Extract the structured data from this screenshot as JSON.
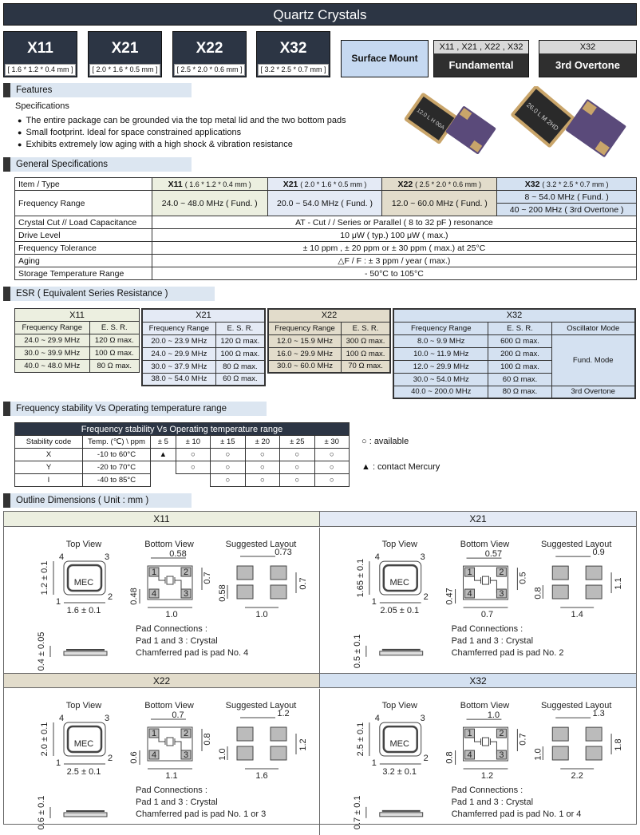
{
  "header": {
    "title": "Quartz  Crystals"
  },
  "models": [
    {
      "name": "X11",
      "size": "[ 1.6 * 1.2 * 0.4 mm ]"
    },
    {
      "name": "X21",
      "size": "[ 2.0 * 1.6 * 0.5 mm ]"
    },
    {
      "name": "X22",
      "size": "[ 2.5 * 2.0 * 0.6 mm ]"
    },
    {
      "name": "X32",
      "size": "[ 3.2 * 2.5 * 0.7 mm ]"
    }
  ],
  "badges": {
    "surface_mount": "Surface Mount",
    "fundamental": {
      "models": "X11 , X21 , X22 , X32",
      "label": "Fundamental"
    },
    "overtone": {
      "models": "X32",
      "label": "3rd Overtone"
    }
  },
  "features": {
    "heading": "Features",
    "subheading": "Specifications",
    "bullets": [
      "The entire package can be grounded via the top metal lid and the two bottom pads",
      "Small footprint. Ideal for space constrained applications",
      "Exhibits extremely low aging with a high shock & vibration resistance"
    ],
    "photo_markings": [
      "12.0 L H 00A",
      "26.0 L M 2HD"
    ]
  },
  "general": {
    "heading": "General Specifications",
    "header": {
      "item": "Item / Type",
      "cols": [
        {
          "model": "X11",
          "size": "( 1.6 * 1.2 * 0.4 mm )"
        },
        {
          "model": "X21",
          "size": "( 2.0 * 1.6 * 0.5 mm )"
        },
        {
          "model": "X22",
          "size": "( 2.5 * 2.0 * 0.6 mm )"
        },
        {
          "model": "X32",
          "size": "( 3.2 * 2.5 * 0.7 mm )"
        }
      ]
    },
    "freq": {
      "label": "Frequency Range",
      "values": [
        "24.0 ~ 48.0 MHz ( Fund. )",
        "20.0 ~ 54.0 MHz ( Fund. )",
        "12.0 ~ 60.0 MHz  ( Fund. )"
      ],
      "x32": [
        "8 ~ 54.0 MHz ( Fund. )",
        "40 ~ 200 MHz ( 3rd Overtone )"
      ]
    },
    "rows": [
      {
        "label": "Crystal Cut // Load Capacitance",
        "value": "AT - Cut  / /  Series or Parallel ( 8 to 32 pF ) resonance"
      },
      {
        "label": "Drive Level",
        "value": "10 μW  ( typ.)     100 μW ( max.)"
      },
      {
        "label": "Frequency Tolerance",
        "value": "± 10 ppm , ± 20 ppm or ± 30 ppm ( max.) at  25°C"
      },
      {
        "label": "Aging",
        "value": "△F / F : ± 3 ppm  /  year ( max.)"
      },
      {
        "label": "Storage Temperature Range",
        "value": "- 50°C to 105°C"
      }
    ]
  },
  "esr": {
    "heading": "ESR ( Equivalent Series Resistance )",
    "col_freq": "Frequency Range",
    "col_esr": "E. S. R.",
    "col_mode": "Oscillator Mode",
    "groups": [
      {
        "model": "X11",
        "rows": [
          [
            "24.0 ~ 29.9 MHz",
            "120 Ω max."
          ],
          [
            "30.0 ~ 39.9 MHz",
            "100 Ω max."
          ],
          [
            "40.0 ~ 48.0 MHz",
            "80 Ω max."
          ]
        ]
      },
      {
        "model": "X21",
        "rows": [
          [
            "20.0 ~ 23.9 MHz",
            "120 Ω max."
          ],
          [
            "24.0 ~ 29.9 MHz",
            "100 Ω max."
          ],
          [
            "30.0 ~ 37.9 MHz",
            "80 Ω max."
          ],
          [
            "38.0 ~ 54.0 MHz",
            "60 Ω max."
          ]
        ]
      },
      {
        "model": "X22",
        "rows": [
          [
            "12.0 ~ 15.9 MHz",
            "300 Ω max."
          ],
          [
            "16.0 ~ 29.9 MHz",
            "100 Ω max."
          ],
          [
            "30.0 ~ 60.0 MHz",
            "70 Ω max."
          ]
        ]
      },
      {
        "model": "X32",
        "rows": [
          [
            "8.0 ~ 9.9 MHz",
            "600 Ω max."
          ],
          [
            "10.0 ~ 11.9 MHz",
            "200 Ω max."
          ],
          [
            "12.0 ~ 29.9 MHz",
            "100 Ω max."
          ],
          [
            "30.0 ~ 54.0 MHz",
            "60 Ω max."
          ],
          [
            "40.0 ~ 200.0 MHz",
            "80 Ω max."
          ]
        ],
        "modes": [
          "Fund. Mode",
          "3rd Overtone"
        ]
      }
    ]
  },
  "stability": {
    "heading": "Frequency stability Vs Operating temperature range",
    "title": "Frequency stability Vs Operating temperature range",
    "col_code": "Stability code",
    "col_temp": "Temp. (℃) \\ ppm",
    "ppm": [
      "± 5",
      "± 10",
      "± 15",
      "± 20",
      "± 25",
      "± 30"
    ],
    "rows": [
      {
        "code": "X",
        "temp": "-10   to   60°C",
        "marks": [
          "triangle",
          "circle",
          "circle",
          "circle",
          "circle",
          "circle"
        ]
      },
      {
        "code": "Y",
        "temp": "-20   to   70°C",
        "marks": [
          "",
          "circle",
          "circle",
          "circle",
          "circle",
          "circle"
        ]
      },
      {
        "code": "I",
        "temp": "-40   to   85°C",
        "marks": [
          "",
          "",
          "circle",
          "circle",
          "circle",
          "circle"
        ]
      }
    ],
    "legend": {
      "available": "○ : available",
      "contact": "▲ : contact  Mercury"
    }
  },
  "outline": {
    "heading": "Outline Dimensions ( Unit : mm )",
    "top_view": "Top View",
    "bottom_view": "Bottom View",
    "layout": "Suggested Layout",
    "logo": "MEC",
    "pins": [
      "1",
      "2",
      "3",
      "4"
    ],
    "panels": [
      {
        "model": "X11",
        "color": "#ecefe0",
        "h": "1.2 ± 0.1",
        "w": "1.6 ± 0.1",
        "t": "0.4 ± 0.05",
        "b": [
          "0.58",
          "0.7",
          "0.48",
          "1.0"
        ],
        "l": [
          "0.73",
          "0.58",
          "1.0",
          "0.7"
        ],
        "pads": [
          "Pad Connections :",
          "Pad 1 and 3 : Crystal",
          "Chamferred pad is pad No. 4"
        ]
      },
      {
        "model": "X21",
        "color": "#e4eaf5",
        "h": "1.65 ± 0.1",
        "w": "2.05 ± 0.1",
        "t": "0.5 ± 0.1",
        "b": [
          "0.57",
          "0.5",
          "0.47",
          "0.7"
        ],
        "l": [
          "0.9",
          "0.8",
          "1.4",
          "1.1"
        ],
        "pads": [
          "Pad Connections :",
          "Pad 1 and 3 : Crystal",
          "Chamferred pad is pad No. 2"
        ]
      },
      {
        "model": "X22",
        "color": "#e2dccb",
        "h": "2.0 ± 0.1",
        "w": "2.5 ± 0.1",
        "t": "0.6 ± 0.1",
        "b": [
          "0.7",
          "0.8",
          "0.6",
          "1.1"
        ],
        "l": [
          "1.2",
          "1.0",
          "1.6",
          "1.2"
        ],
        "pads": [
          "Pad Connections :",
          "Pad 1 and 3 : Crystal",
          "Chamferred pad is pad No. 1 or 3"
        ]
      },
      {
        "model": "X32",
        "color": "#d4e1f1",
        "h": "2.5 ± 0.1",
        "w": "3.2 ± 0.1",
        "t": "0.7 ± 0.1",
        "b": [
          "1.0",
          "0.7",
          "0.8",
          "1.2"
        ],
        "l": [
          "1.3",
          "1.0",
          "2.2",
          "1.8"
        ],
        "pads": [
          "Pad Connections :",
          "Pad 1 and 3 : Crystal",
          "Chamferred pad is pad No. 1 or 4"
        ]
      }
    ]
  },
  "colors": {
    "navy": "#2c3544",
    "x11": "#ecefe0",
    "x21": "#e4eaf5",
    "x22": "#e2dccb",
    "x32": "#d4e1f1",
    "section": "#dce6f1",
    "surface_mount": "#c6d9f1"
  }
}
